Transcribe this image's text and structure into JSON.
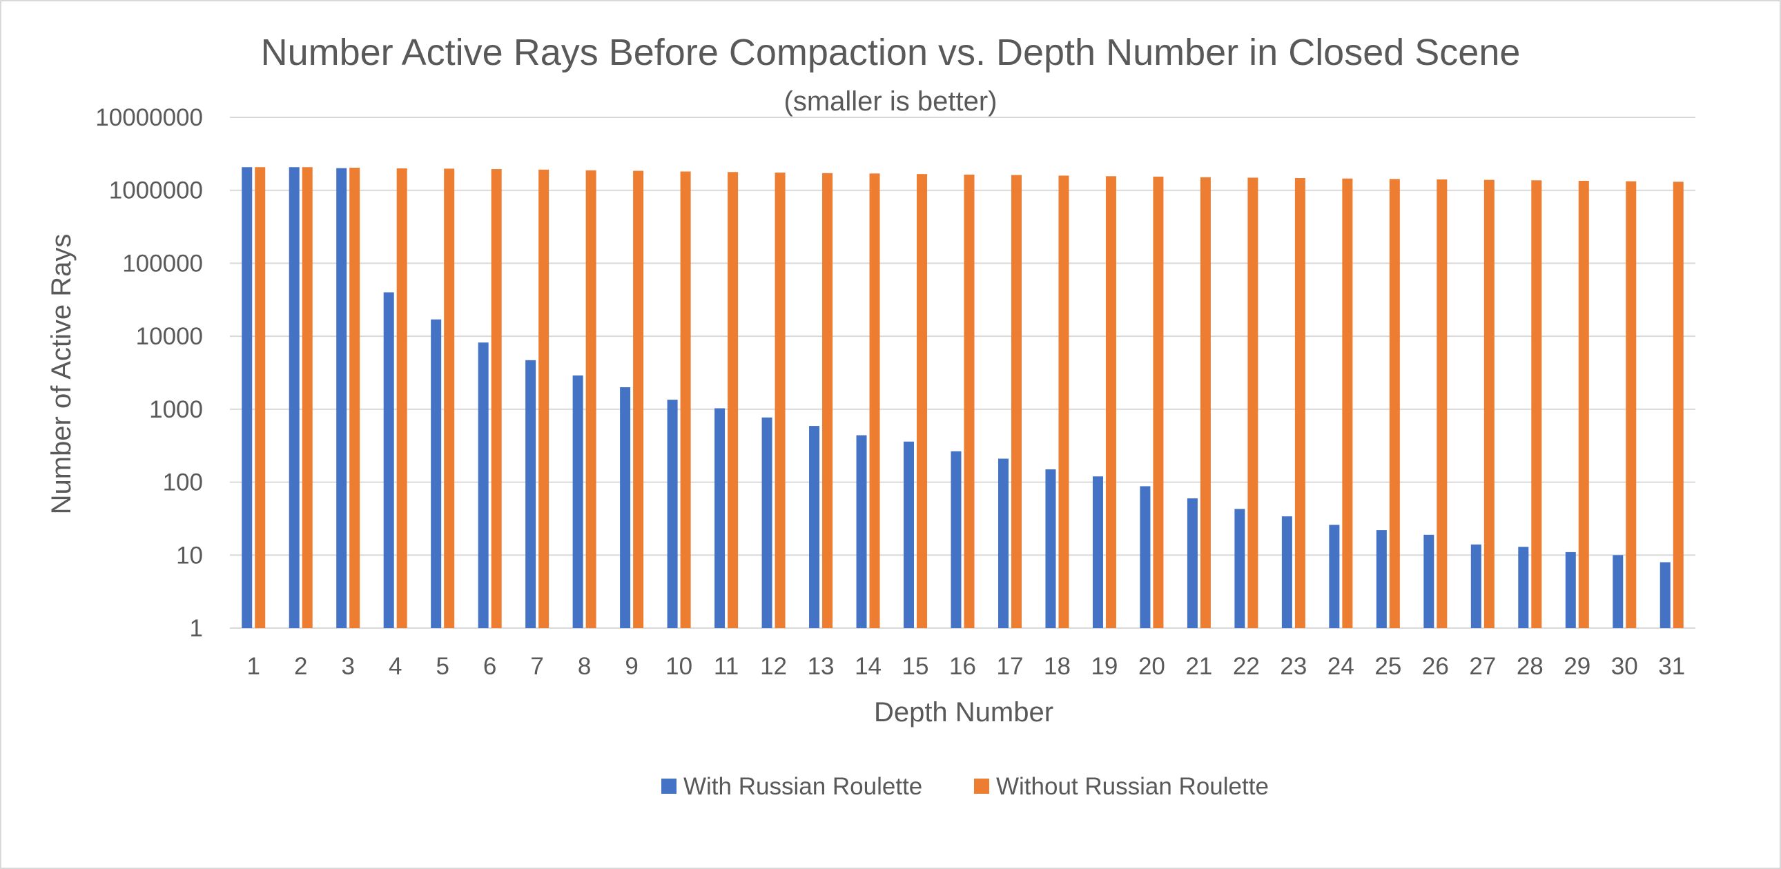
{
  "chart_data": {
    "type": "bar",
    "title": "Number Active Rays Before Compaction vs. Depth Number in Closed Scene",
    "subtitle": "(smaller is better)",
    "xlabel": "Depth Number",
    "ylabel": "Number of Active Rays",
    "yscale": "log",
    "ylim": [
      1,
      10000000
    ],
    "yticks": [
      "1",
      "10",
      "100",
      "1000",
      "10000",
      "100000",
      "1000000",
      "10000000"
    ],
    "grid": true,
    "legend_position": "bottom",
    "categories": [
      "1",
      "2",
      "3",
      "4",
      "5",
      "6",
      "7",
      "8",
      "9",
      "10",
      "11",
      "12",
      "13",
      "14",
      "15",
      "16",
      "17",
      "18",
      "19",
      "20",
      "21",
      "22",
      "23",
      "24",
      "25",
      "26",
      "27",
      "28",
      "29",
      "30",
      "31"
    ],
    "series": [
      {
        "name": "With Russian Roulette",
        "color": "#4472c4",
        "values": [
          2073600,
          2073600,
          2015000,
          40000,
          17000,
          8200,
          4700,
          2900,
          2000,
          1350,
          1030,
          770,
          590,
          440,
          360,
          265,
          210,
          150,
          120,
          88,
          60,
          43,
          34,
          26,
          22,
          19,
          14,
          13,
          11,
          10,
          8
        ]
      },
      {
        "name": "Without Russian Roulette",
        "color": "#ed7d31",
        "values": [
          2073600,
          2073600,
          2040000,
          2000000,
          1980000,
          1950000,
          1920000,
          1880000,
          1850000,
          1810000,
          1780000,
          1750000,
          1720000,
          1700000,
          1670000,
          1640000,
          1620000,
          1590000,
          1560000,
          1540000,
          1510000,
          1490000,
          1470000,
          1450000,
          1430000,
          1410000,
          1390000,
          1370000,
          1350000,
          1330000,
          1310000
        ]
      }
    ]
  }
}
